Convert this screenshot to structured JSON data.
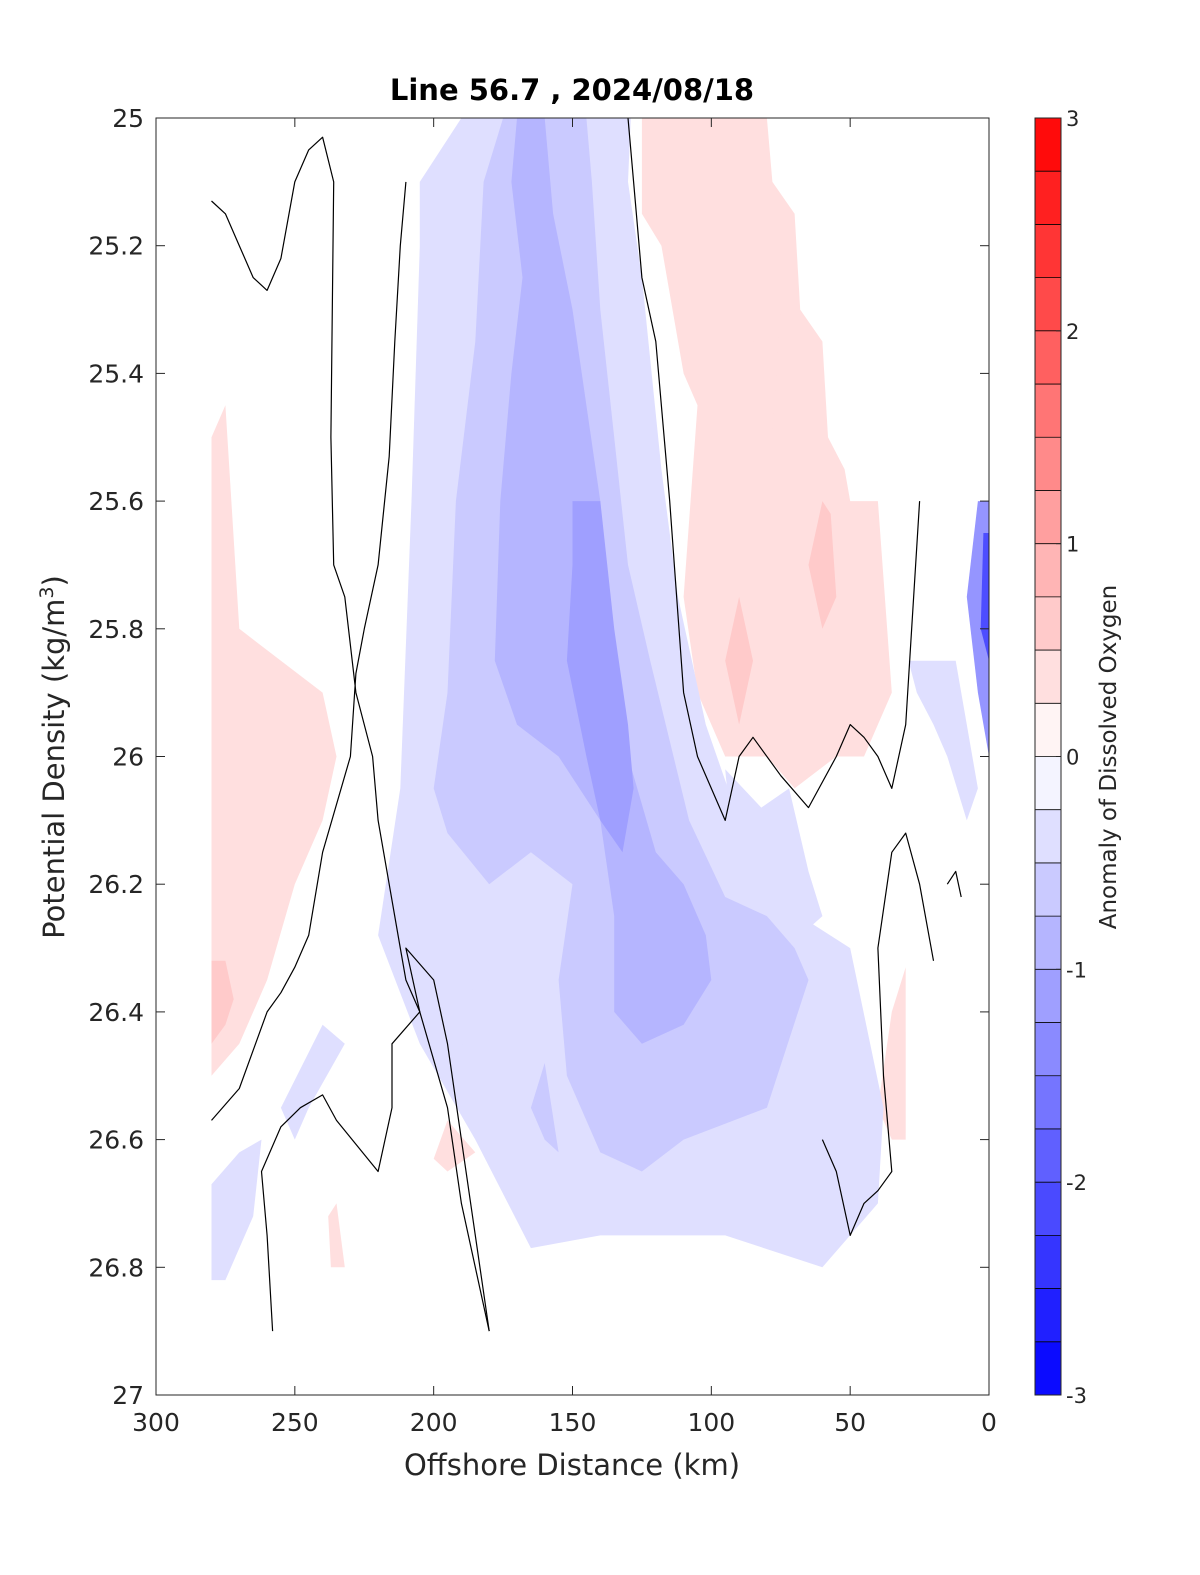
{
  "chart_data": {
    "type": "contour",
    "title": "Line 56.7 , 2024/08/18",
    "xlabel": "Offshore Distance (km)",
    "ylabel": {
      "text": "Potential Density (kg/m",
      "sup": "3",
      "tail": ")"
    },
    "xlim": [
      300,
      0
    ],
    "ylim": [
      25,
      27
    ],
    "x_reversed": true,
    "y_reversed": true,
    "x_ticks": [
      300,
      250,
      200,
      150,
      100,
      50,
      0
    ],
    "y_ticks": [
      "25",
      "25.2",
      "25.4",
      "25.6",
      "25.8",
      "26",
      "26.2",
      "26.4",
      "26.6",
      "26.8",
      "27"
    ],
    "y_tick_values": [
      25,
      25.2,
      25.4,
      25.6,
      25.8,
      26,
      26.2,
      26.4,
      26.6,
      26.8,
      27
    ],
    "colorbar": {
      "label": "Anomaly of Dissolved Oxygen",
      "limits": [
        -3,
        3
      ],
      "ticks": [
        "3",
        "2",
        "1",
        "0",
        "-1",
        "-2",
        "-3"
      ],
      "tick_values": [
        3,
        2,
        1,
        0,
        -1,
        -2,
        -3
      ],
      "levels": [
        -3,
        -2.75,
        -2.5,
        -2.25,
        -2,
        -1.75,
        -1.5,
        -1.25,
        -1,
        -0.75,
        -0.5,
        -0.25,
        0,
        0.25,
        0.5,
        0.75,
        1,
        1.25,
        1.5,
        1.75,
        2,
        2.25,
        2.5,
        2.75,
        3
      ],
      "low_color": "#0000ff",
      "mid_color": "#ffffff",
      "high_color": "#ff0000"
    },
    "filled_regions": [
      {
        "level": -0.25,
        "points": [
          [
            172,
            25.0
          ],
          [
            129,
            25.0
          ],
          [
            130,
            25.1
          ],
          [
            125,
            25.25
          ],
          [
            118,
            25.55
          ],
          [
            112,
            25.75
          ],
          [
            102,
            25.95
          ],
          [
            90,
            26.1
          ],
          [
            80,
            26.2
          ],
          [
            68,
            26.25
          ],
          [
            50,
            26.3
          ],
          [
            38,
            26.55
          ],
          [
            40,
            26.7
          ],
          [
            60,
            26.8
          ],
          [
            95,
            26.75
          ],
          [
            120,
            26.75
          ],
          [
            140,
            26.75
          ],
          [
            165,
            26.77
          ],
          [
            185,
            26.6
          ],
          [
            205,
            26.45
          ],
          [
            220,
            26.28
          ],
          [
            212,
            26.05
          ],
          [
            208,
            25.6
          ],
          [
            205,
            25.2
          ],
          [
            205,
            25.1
          ],
          [
            190,
            25.0
          ]
        ]
      },
      {
        "level": -0.25,
        "points": [
          [
            95,
            26.02
          ],
          [
            82,
            26.08
          ],
          [
            72,
            26.05
          ],
          [
            65,
            26.18
          ],
          [
            60,
            26.25
          ],
          [
            73,
            26.3
          ],
          [
            90,
            26.25
          ]
        ]
      },
      {
        "level": -0.25,
        "points": [
          [
            180,
            26.35
          ],
          [
            170,
            26.4
          ],
          [
            155,
            26.45
          ],
          [
            160,
            26.55
          ],
          [
            175,
            26.5
          ],
          [
            190,
            26.45
          ],
          [
            200,
            26.4
          ]
        ]
      },
      {
        "level": -0.25,
        "points": [
          [
            240,
            26.42
          ],
          [
            255,
            26.55
          ],
          [
            250,
            26.6
          ],
          [
            245,
            26.55
          ],
          [
            232,
            26.45
          ]
        ]
      },
      {
        "level": -0.25,
        "points": [
          [
            280,
            26.67
          ],
          [
            270,
            26.62
          ],
          [
            262,
            26.6
          ],
          [
            265,
            26.72
          ],
          [
            275,
            26.82
          ],
          [
            280,
            26.82
          ]
        ]
      },
      {
        "level": -0.25,
        "points": [
          [
            12,
            25.85
          ],
          [
            8,
            25.95
          ],
          [
            4,
            26.05
          ],
          [
            8,
            26.1
          ],
          [
            15,
            26.0
          ],
          [
            20,
            25.95
          ],
          [
            26,
            25.9
          ],
          [
            29,
            25.85
          ]
        ]
      },
      {
        "level": -0.5,
        "points": [
          [
            175,
            25.0
          ],
          [
            145,
            25.0
          ],
          [
            143,
            25.1
          ],
          [
            140,
            25.3
          ],
          [
            135,
            25.5
          ],
          [
            130,
            25.7
          ],
          [
            122,
            25.85
          ],
          [
            108,
            26.1
          ],
          [
            95,
            26.22
          ],
          [
            80,
            26.25
          ],
          [
            70,
            26.3
          ],
          [
            65,
            26.35
          ],
          [
            80,
            26.55
          ],
          [
            110,
            26.6
          ],
          [
            125,
            26.65
          ],
          [
            140,
            26.62
          ],
          [
            152,
            26.5
          ],
          [
            155,
            26.35
          ],
          [
            150,
            26.2
          ],
          [
            165,
            26.15
          ],
          [
            180,
            26.2
          ],
          [
            195,
            26.12
          ],
          [
            200,
            26.05
          ],
          [
            195,
            25.9
          ],
          [
            192,
            25.6
          ],
          [
            185,
            25.35
          ],
          [
            182,
            25.1
          ]
        ]
      },
      {
        "level": -0.5,
        "points": [
          [
            165,
            26.55
          ],
          [
            160,
            26.6
          ],
          [
            155,
            26.62
          ],
          [
            160,
            26.48
          ]
        ]
      },
      {
        "level": -0.75,
        "points": [
          [
            170,
            25.0
          ],
          [
            160,
            25.0
          ],
          [
            157,
            25.15
          ],
          [
            150,
            25.3
          ],
          [
            145,
            25.45
          ],
          [
            140,
            25.6
          ],
          [
            138,
            25.8
          ],
          [
            130,
            26.0
          ],
          [
            120,
            26.15
          ],
          [
            110,
            26.2
          ],
          [
            102,
            26.28
          ],
          [
            100,
            26.35
          ],
          [
            110,
            26.42
          ],
          [
            125,
            26.45
          ],
          [
            135,
            26.4
          ],
          [
            135,
            26.25
          ],
          [
            140,
            26.1
          ],
          [
            155,
            26.0
          ],
          [
            170,
            25.95
          ],
          [
            178,
            25.85
          ],
          [
            176,
            25.6
          ],
          [
            172,
            25.4
          ],
          [
            168,
            25.25
          ],
          [
            172,
            25.1
          ]
        ]
      },
      {
        "level": -1.0,
        "points": [
          [
            150,
            25.6
          ],
          [
            140,
            25.6
          ],
          [
            135,
            25.8
          ],
          [
            130,
            25.95
          ],
          [
            128,
            26.05
          ],
          [
            132,
            26.15
          ],
          [
            140,
            26.1
          ],
          [
            145,
            26.0
          ],
          [
            152,
            25.85
          ],
          [
            150,
            25.7
          ]
        ]
      }
    ],
    "positive_regions": [
      {
        "level": 0.25,
        "points": [
          [
            125,
            25.0
          ],
          [
            80,
            25.0
          ],
          [
            78,
            25.1
          ],
          [
            70,
            25.15
          ],
          [
            68,
            25.3
          ],
          [
            60,
            25.35
          ],
          [
            58,
            25.5
          ],
          [
            52,
            25.55
          ],
          [
            50,
            25.6
          ],
          [
            40,
            25.6
          ],
          [
            35,
            25.9
          ],
          [
            45,
            26.0
          ],
          [
            55,
            26.0
          ],
          [
            70,
            26.05
          ],
          [
            80,
            26.0
          ],
          [
            95,
            26.0
          ],
          [
            105,
            25.9
          ],
          [
            110,
            25.75
          ],
          [
            105,
            25.45
          ],
          [
            110,
            25.4
          ],
          [
            118,
            25.2
          ],
          [
            125,
            25.15
          ]
        ]
      },
      {
        "level": 0.25,
        "points": [
          [
            82,
            25.25
          ],
          [
            75,
            25.3
          ],
          [
            78,
            25.5
          ],
          [
            82,
            25.45
          ],
          [
            85,
            25.35
          ]
        ]
      },
      {
        "level": 0.25,
        "points": [
          [
            275,
            25.45
          ],
          [
            280,
            25.5
          ],
          [
            280,
            26.5
          ],
          [
            270,
            26.45
          ],
          [
            260,
            26.35
          ],
          [
            250,
            26.2
          ],
          [
            240,
            26.1
          ],
          [
            235,
            26.0
          ],
          [
            240,
            25.9
          ],
          [
            255,
            25.85
          ],
          [
            270,
            25.8
          ]
        ]
      },
      {
        "level": 0.25,
        "points": [
          [
            265,
            26.15
          ],
          [
            260,
            26.2
          ],
          [
            270,
            26.22
          ]
        ]
      },
      {
        "level": 0.25,
        "points": [
          [
            195,
            26.57
          ],
          [
            185,
            26.62
          ],
          [
            195,
            26.65
          ],
          [
            200,
            26.63
          ]
        ]
      },
      {
        "level": 0.25,
        "points": [
          [
            235,
            26.7
          ],
          [
            232,
            26.8
          ],
          [
            237,
            26.8
          ],
          [
            238,
            26.72
          ]
        ]
      },
      {
        "level": 0.25,
        "points": [
          [
            30,
            26.33
          ],
          [
            35,
            26.4
          ],
          [
            40,
            26.55
          ],
          [
            35,
            26.6
          ],
          [
            30,
            26.6
          ]
        ]
      },
      {
        "level": 0.5,
        "points": [
          [
            60,
            25.6
          ],
          [
            65,
            25.7
          ],
          [
            60,
            25.8
          ],
          [
            55,
            25.75
          ],
          [
            57,
            25.62
          ]
        ]
      },
      {
        "level": 0.5,
        "points": [
          [
            90,
            25.75
          ],
          [
            95,
            25.85
          ],
          [
            90,
            25.95
          ],
          [
            85,
            25.85
          ]
        ]
      },
      {
        "level": 0.5,
        "points": [
          [
            280,
            26.32
          ],
          [
            275,
            26.32
          ],
          [
            272,
            26.38
          ],
          [
            275,
            26.42
          ],
          [
            280,
            26.45
          ]
        ]
      }
    ],
    "deep_shelf_region": {
      "level": -1.5,
      "points": [
        [
          4,
          25.6
        ],
        [
          0,
          25.6
        ],
        [
          0,
          26.0
        ],
        [
          4,
          25.9
        ],
        [
          8,
          25.75
        ]
      ]
    },
    "zero_contours": [
      [
        [
          280,
          25.13
        ],
        [
          275,
          25.15
        ],
        [
          270,
          25.2
        ],
        [
          265,
          25.25
        ],
        [
          260,
          25.27
        ],
        [
          255,
          25.22
        ],
        [
          250,
          25.1
        ],
        [
          245,
          25.05
        ],
        [
          240,
          25.03
        ],
        [
          236,
          25.1
        ],
        [
          237,
          25.5
        ],
        [
          236,
          25.7
        ],
        [
          232,
          25.75
        ],
        [
          228,
          25.9
        ],
        [
          222,
          26.0
        ],
        [
          220,
          26.1
        ],
        [
          212,
          26.3
        ],
        [
          210,
          26.35
        ],
        [
          205,
          26.4
        ],
        [
          195,
          26.55
        ],
        [
          190,
          26.7
        ],
        [
          185,
          26.8
        ],
        [
          180,
          26.9
        ]
      ],
      [
        [
          280,
          26.57
        ],
        [
          270,
          26.52
        ],
        [
          260,
          26.4
        ],
        [
          255,
          26.37
        ],
        [
          250,
          26.33
        ],
        [
          245,
          26.28
        ],
        [
          240,
          26.15
        ],
        [
          230,
          26.0
        ],
        [
          228,
          25.87
        ],
        [
          225,
          25.8
        ],
        [
          220,
          25.7
        ],
        [
          216,
          25.53
        ],
        [
          214,
          25.35
        ],
        [
          212,
          25.2
        ],
        [
          210,
          25.1
        ]
      ],
      [
        [
          258,
          26.9
        ],
        [
          260,
          26.75
        ],
        [
          262,
          26.65
        ],
        [
          255,
          26.58
        ],
        [
          248,
          26.55
        ],
        [
          240,
          26.53
        ],
        [
          235,
          26.57
        ],
        [
          220,
          26.65
        ],
        [
          215,
          26.55
        ],
        [
          215,
          26.45
        ],
        [
          205,
          26.4
        ],
        [
          210,
          26.3
        ],
        [
          200,
          26.35
        ],
        [
          195,
          26.45
        ],
        [
          190,
          26.6
        ],
        [
          180,
          26.9
        ]
      ],
      [
        [
          130,
          25.0
        ],
        [
          128,
          25.1
        ],
        [
          125,
          25.25
        ],
        [
          120,
          25.35
        ],
        [
          115,
          25.6
        ],
        [
          110,
          25.9
        ],
        [
          105,
          26.0
        ],
        [
          95,
          26.1
        ],
        [
          90,
          26.0
        ],
        [
          85,
          25.97
        ],
        [
          75,
          26.03
        ],
        [
          65,
          26.08
        ],
        [
          55,
          26.0
        ],
        [
          50,
          25.95
        ],
        [
          45,
          25.97
        ],
        [
          40,
          26.0
        ],
        [
          35,
          26.05
        ],
        [
          30,
          25.95
        ],
        [
          25,
          25.6
        ]
      ],
      [
        [
          60,
          26.6
        ],
        [
          55,
          26.65
        ],
        [
          50,
          26.75
        ],
        [
          45,
          26.7
        ],
        [
          40,
          26.68
        ],
        [
          35,
          26.65
        ],
        [
          38,
          26.5
        ],
        [
          40,
          26.3
        ],
        [
          35,
          26.15
        ],
        [
          30,
          26.12
        ],
        [
          25,
          26.2
        ],
        [
          20,
          26.32
        ]
      ],
      [
        [
          10,
          26.22
        ],
        [
          12,
          26.18
        ],
        [
          15,
          26.2
        ]
      ]
    ]
  }
}
